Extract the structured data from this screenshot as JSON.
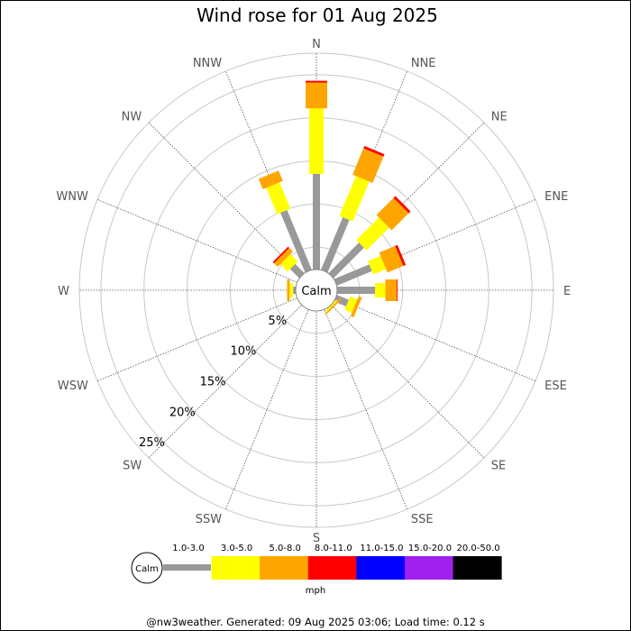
{
  "chart_data": {
    "type": "windrose",
    "title": "Wind rose for 01 Aug 2025",
    "calm_label": "Calm",
    "directions": [
      "N",
      "NNE",
      "NE",
      "ENE",
      "E",
      "ESE",
      "SE",
      "SSE",
      "S",
      "SSW",
      "SW",
      "WSW",
      "W",
      "WNW",
      "NW",
      "NNW"
    ],
    "radial_ticks": [
      5,
      10,
      15,
      20,
      25
    ],
    "radial_tick_labels": [
      "5%",
      "10%",
      "15%",
      "20%",
      "25%"
    ],
    "rmax": 27.5,
    "calm_percent": 2.4,
    "speed_bins": [
      "1.0-3.0",
      "3.0-5.0",
      "5.0-8.0",
      "8.0-11.0",
      "11.0-15.0",
      "15.0-20.0",
      "20.0-50.0"
    ],
    "speed_unit": "mph",
    "colors": [
      "#999999",
      "#ffff00",
      "#ffa500",
      "#ff0000",
      "#0000ff",
      "#a020f0",
      "#000000"
    ],
    "series": [
      {
        "name": "1.0-3.0",
        "values": [
          11.1,
          6.6,
          5.0,
          4.4,
          4.4,
          1.5,
          0.0,
          0.0,
          0.0,
          0.0,
          0.0,
          0.0,
          0.3,
          0.0,
          1.5,
          7.5
        ]
      },
      {
        "name": "3.0-5.0",
        "values": [
          7.6,
          5.0,
          3.7,
          1.6,
          1.2,
          0.9,
          0.2,
          0.0,
          0.0,
          0.0,
          0.0,
          0.0,
          0.4,
          0.0,
          1.2,
          3.3
        ]
      },
      {
        "name": "5.0-8.0",
        "values": [
          3.0,
          3.3,
          2.8,
          2.0,
          1.3,
          0.4,
          0.2,
          0.0,
          0.0,
          0.0,
          0.0,
          0.0,
          0.3,
          0.0,
          0.6,
          1.3
        ]
      },
      {
        "name": "8.0-11.0",
        "values": [
          0.2,
          0.3,
          0.3,
          0.3,
          0.1,
          0.0,
          0.0,
          0.0,
          0.0,
          0.0,
          0.0,
          0.0,
          0.0,
          0.0,
          0.2,
          0.0
        ]
      },
      {
        "name": "11.0-15.0",
        "values": [
          0,
          0,
          0,
          0,
          0,
          0,
          0,
          0,
          0,
          0,
          0,
          0,
          0,
          0,
          0,
          0
        ]
      },
      {
        "name": "15.0-20.0",
        "values": [
          0,
          0,
          0,
          0,
          0,
          0,
          0,
          0,
          0,
          0,
          0,
          0,
          0,
          0,
          0,
          0
        ]
      },
      {
        "name": "20.0-50.0",
        "values": [
          0,
          0,
          0,
          0,
          0,
          0,
          0,
          0,
          0,
          0,
          0,
          0,
          0,
          0,
          0,
          0
        ]
      }
    ]
  },
  "legend": {
    "calm_label": "Calm",
    "unit_label": "mph"
  },
  "footer": {
    "text": "@nw3weather. Generated: 09 Aug 2025 03:06; Load time: 0.12 s"
  }
}
